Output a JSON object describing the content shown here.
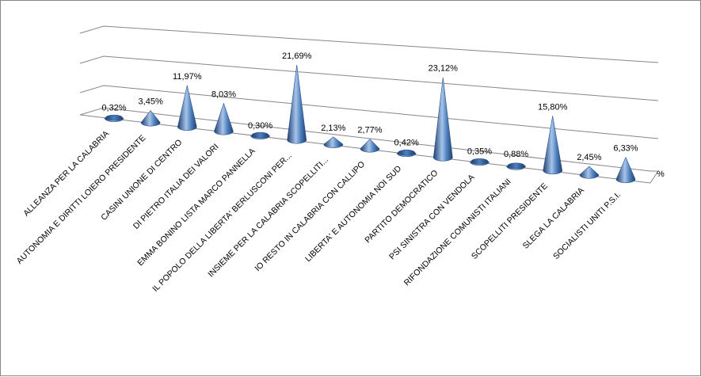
{
  "chart_data": {
    "type": "bar",
    "shape": "3d-cone",
    "categories": [
      "ALLEANZA PER LA CALABRIA",
      "AUTONOMIA E DIRITTI  LOIERO PRESIDENTE",
      "CASINI UNIONE  DI CENTRO",
      "DI PIETRO ITALIA DEI VALORI",
      "EMMA BONINO  LISTA MARCO PANNELLA",
      "IL POPOLO DELLA LIBERTA'  BERLUSCONI PER...",
      "INSIEME  PER LA CALABRIA SCOPELLITI...",
      "IO RESTO IN CALABRIA CON CALLIPO",
      "LIBERTA' E AUTONOMIA  NOI SUD",
      "PARTITO DEMOCRATICO",
      "PSI SINISTRA  CON VENDOLA",
      "RIFONDAZIONE COMUNISTI  ITALIANI",
      "SCOPELLITI PRESIDENTE",
      "SLEGA LA CALABRIA",
      "SOCIALISTI UNITI P.S.I."
    ],
    "values": [
      0.32,
      3.45,
      11.97,
      8.03,
      0.3,
      21.69,
      2.13,
      2.77,
      0.42,
      23.12,
      0.35,
      0.88,
      15.8,
      2.45,
      6.33
    ],
    "data_labels": [
      "0,32%",
      "3,45%",
      "11,97%",
      "8,03%",
      "0,30%",
      "21,69%",
      "2,13%",
      "2,77%",
      "0,42%",
      "23,12%",
      "0,35%",
      "0,88%",
      "15,80%",
      "2,45%",
      "6,33%"
    ],
    "axis_label": "%",
    "colors": {
      "cone": "#4F81BD",
      "cone_dark": "#1F3F70",
      "cone_light": "#A7C4EA",
      "grid": "#868686"
    },
    "grid": true,
    "legend": "none"
  }
}
